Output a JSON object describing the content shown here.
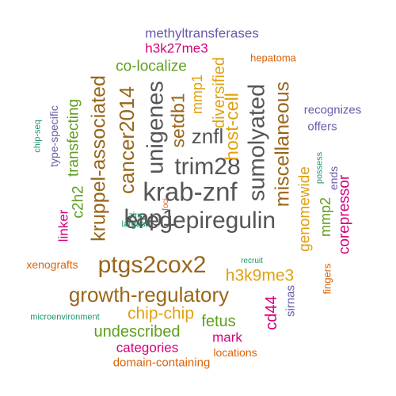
{
  "palette": {
    "gray": "#555555",
    "brown": "#99661a",
    "green": "#5e9e1c",
    "gold": "#e0a010",
    "magenta": "#d4007a",
    "purple": "#6a5aa8",
    "orange": "#d8640a",
    "teal": "#1f9470"
  },
  "words": [
    {
      "text": "eregepiregulin",
      "color": "gray"
    },
    {
      "text": "krab-znf",
      "color": "gray"
    },
    {
      "text": "ptgs2cox2",
      "color": "brown"
    },
    {
      "text": "kap1",
      "color": "gray"
    },
    {
      "text": "trim28",
      "color": "gray"
    },
    {
      "text": "sumolyated",
      "color": "gray"
    },
    {
      "text": "unigenes",
      "color": "gray"
    },
    {
      "text": "znfl",
      "color": "gray"
    },
    {
      "text": "cancer2014",
      "color": "brown"
    },
    {
      "text": "growth-regulatory",
      "color": "brown"
    },
    {
      "text": "kruppel-associated",
      "color": "brown"
    },
    {
      "text": "miscellaneous",
      "color": "brown"
    },
    {
      "text": "setdb1",
      "color": "brown"
    },
    {
      "text": "host-cell",
      "color": "gold"
    },
    {
      "text": "h3k9me3",
      "color": "gold"
    },
    {
      "text": "chip-chip",
      "color": "gold"
    },
    {
      "text": "diversified",
      "color": "gold"
    },
    {
      "text": "genomewide",
      "color": "gold"
    },
    {
      "text": "mmp1",
      "color": "gold"
    },
    {
      "text": "undescribed",
      "color": "green"
    },
    {
      "text": "transfecting",
      "color": "green"
    },
    {
      "text": "co-localize",
      "color": "green"
    },
    {
      "text": "fetus",
      "color": "green"
    },
    {
      "text": "c2h2",
      "color": "green"
    },
    {
      "text": "mmp2",
      "color": "green"
    },
    {
      "text": "cd44",
      "color": "magenta"
    },
    {
      "text": "corepressor",
      "color": "magenta"
    },
    {
      "text": "h3k27me3",
      "color": "magenta"
    },
    {
      "text": "categories",
      "color": "magenta"
    },
    {
      "text": "mark",
      "color": "magenta"
    },
    {
      "text": "linker",
      "color": "magenta"
    },
    {
      "text": "methyltransferases",
      "color": "purple"
    },
    {
      "text": "recognizes",
      "color": "purple"
    },
    {
      "text": "type-specific",
      "color": "purple"
    },
    {
      "text": "offers",
      "color": "purple"
    },
    {
      "text": "sirnas",
      "color": "purple"
    },
    {
      "text": "ends",
      "color": "purple"
    },
    {
      "text": "domain-containing",
      "color": "orange"
    },
    {
      "text": "xenografts",
      "color": "orange"
    },
    {
      "text": "locations",
      "color": "orange"
    },
    {
      "text": "hepatoma",
      "color": "orange"
    },
    {
      "text": "fingers",
      "color": "orange"
    },
    {
      "text": "foci",
      "color": "orange"
    },
    {
      "text": "chip-seq",
      "color": "teal"
    },
    {
      "text": "microenvironment",
      "color": "teal"
    },
    {
      "text": "largest",
      "color": "teal"
    },
    {
      "text": "zinc",
      "color": "teal"
    },
    {
      "text": "possess",
      "color": "teal"
    },
    {
      "text": "recruit",
      "color": "teal"
    }
  ]
}
